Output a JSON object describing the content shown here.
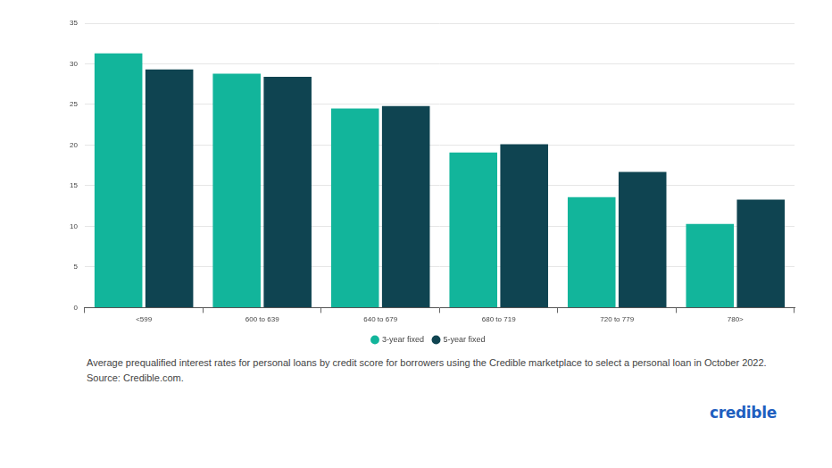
{
  "chart_data": {
    "type": "bar",
    "caption": "Average prequalified interest rates for personal loans by credit score for borrowers using the Credible marketplace to select a personal loan in October 2022. Source: Credible.com.",
    "annotations": [
      "credible"
    ],
    "categories": [
      "<599",
      "600 to 639",
      "640 to 679",
      "680 to 719",
      "720 to 779",
      "780>"
    ],
    "series": [
      {
        "name": "3-year fixed",
        "color": "#12b59b",
        "values": [
          31.3,
          28.8,
          24.5,
          19.1,
          13.6,
          10.3
        ]
      },
      {
        "name": "5-year fixed",
        "color": "#0f4451",
        "values": [
          29.3,
          28.4,
          24.8,
          20.1,
          16.7,
          13.3
        ]
      }
    ],
    "ylim": [
      0,
      35
    ],
    "yticks": [
      0,
      5,
      10,
      15,
      20,
      25,
      30,
      35
    ],
    "grid": true,
    "legend": "bottom"
  }
}
